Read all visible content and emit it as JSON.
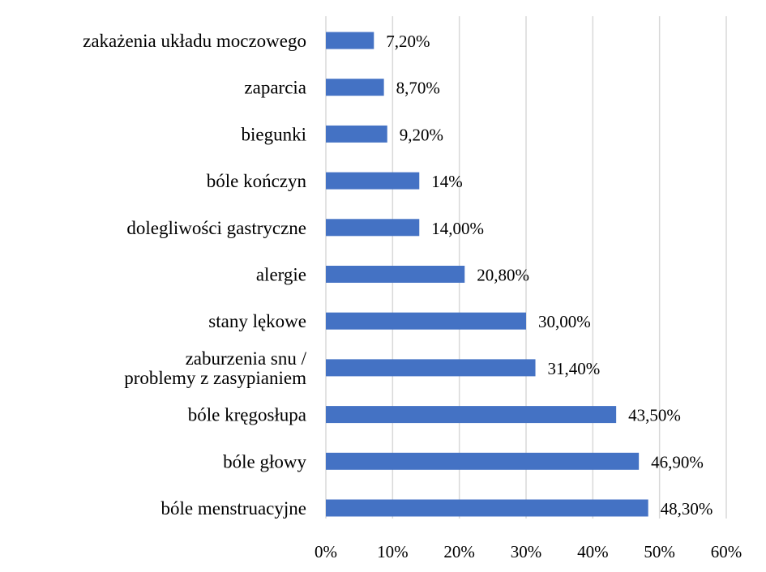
{
  "chart_data": {
    "type": "bar",
    "orientation": "horizontal",
    "title": "",
    "xlabel": "",
    "ylabel": "",
    "categories": [
      [
        "zakażenia układu moczowego"
      ],
      [
        "zaparcia"
      ],
      [
        "biegunki"
      ],
      [
        "bóle kończyn"
      ],
      [
        "dolegliwości gastryczne"
      ],
      [
        "alergie"
      ],
      [
        "stany lękowe"
      ],
      [
        "zaburzenia snu /",
        "problemy z zasypianiem"
      ],
      [
        "bóle kręgosłupa"
      ],
      [
        "bóle głowy"
      ],
      [
        "bóle menstruacyjne"
      ]
    ],
    "values": [
      7.2,
      8.7,
      9.2,
      14,
      14.0,
      20.8,
      30.0,
      31.4,
      43.5,
      46.9,
      48.3
    ],
    "value_labels": [
      "7,20%",
      "8,70%",
      "9,20%",
      "14%",
      "14,00%",
      "20,80%",
      "30,00%",
      "31,40%",
      "43,50%",
      "46,90%",
      "48,30%"
    ],
    "xlim": [
      0,
      60
    ],
    "x_ticks": [
      0,
      10,
      20,
      30,
      40,
      50,
      60
    ],
    "x_tick_labels": [
      "0%",
      "10%",
      "20%",
      "30%",
      "40%",
      "50%",
      "60%"
    ],
    "grid": true,
    "bar_color": "#4472c4",
    "legend": "none"
  }
}
